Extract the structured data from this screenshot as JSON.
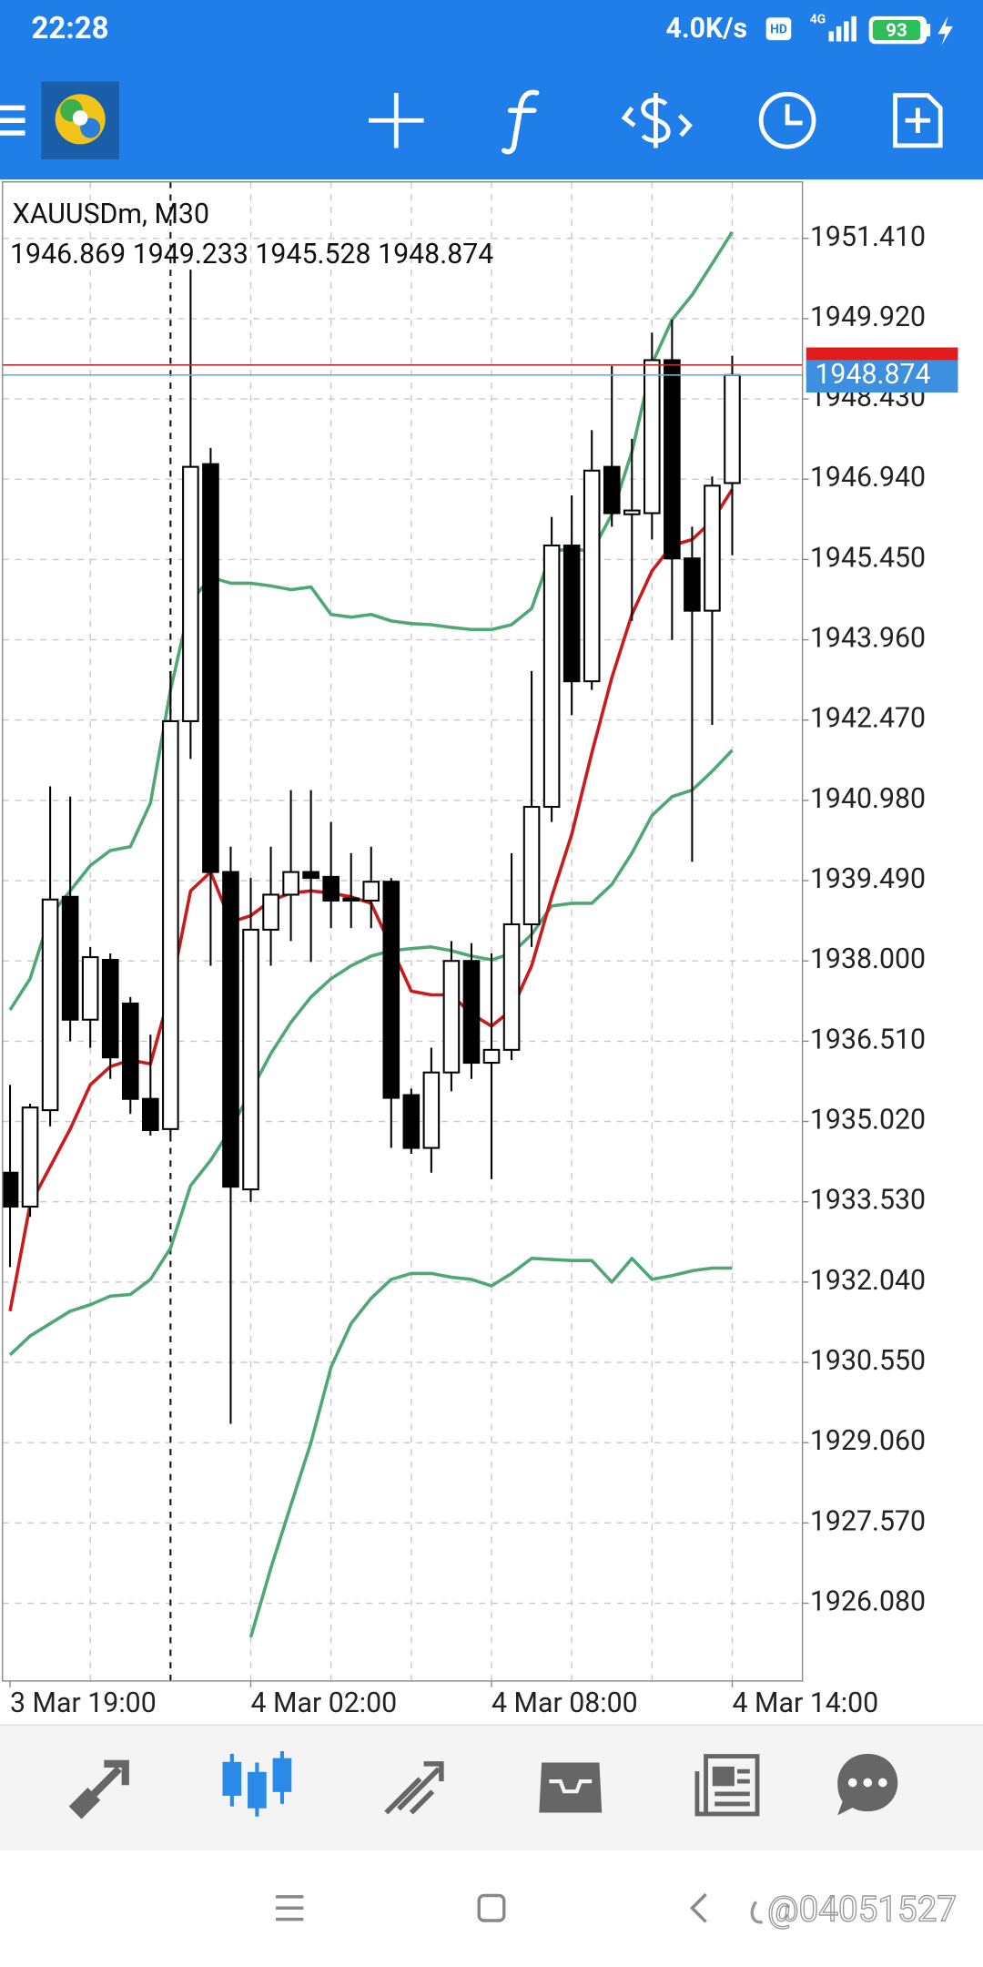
{
  "status_bar": {
    "time": "22:28",
    "network_speed": "4.0K/s",
    "hd": "HD",
    "network": "4G",
    "battery": "93"
  },
  "chart_data": {
    "type": "candlestick",
    "symbol_title": "XAUUSDm, M30",
    "ohlc_label": "1946.869 1949.233 1945.528 1948.874",
    "categories": [
      "3 Mar 19:00",
      null,
      null,
      null,
      null,
      null,
      null,
      null,
      null,
      null,
      null,
      null,
      "4 Mar 02:00",
      null,
      null,
      null,
      null,
      null,
      null,
      null,
      null,
      null,
      null,
      null,
      "4 Mar 08:00",
      null,
      null,
      null,
      null,
      null,
      null,
      null,
      null,
      null,
      null,
      null,
      "4 Mar 14:00"
    ],
    "open": [
      1934.07,
      1933.44,
      1935.23,
      1939.19,
      1936.91,
      1938.02,
      1937.21,
      1935.44,
      1934.88,
      1942.45,
      1947.22,
      1939.65,
      1933.76,
      1938.58,
      1939.23,
      1939.65,
      1939.56,
      1939.16,
      1939.12,
      1939.47,
      1935.51,
      1934.53,
      1935.93,
      1938.0,
      1936.11,
      1936.35,
      1938.68,
      1940.86,
      1945.71,
      1943.19,
      1947.17,
      1946.29,
      1946.31,
      1949.15,
      1945.47,
      1944.5,
      1946.869
    ],
    "high": [
      1935.7,
      1935.35,
      1941.24,
      1941.05,
      1938.26,
      1938.14,
      1937.33,
      1936.63,
      1943.38,
      1950.83,
      1947.52,
      1940.12,
      1939.54,
      1940.12,
      1941.17,
      1941.17,
      1940.58,
      1940.0,
      1940.12,
      1939.54,
      1935.63,
      1936.39,
      1938.37,
      1938.33,
      1938.14,
      1940.0,
      1943.38,
      1946.24,
      1946.64,
      1947.85,
      1949.04,
      1947.69,
      1949.66,
      1949.9,
      1946.06,
      1946.99,
      1949.233
    ],
    "low": [
      1932.32,
      1933.25,
      1934.93,
      1936.51,
      1936.39,
      1935.81,
      1935.16,
      1934.76,
      1934.76,
      1941.75,
      1937.91,
      1929.41,
      1933.53,
      1937.91,
      1938.37,
      1937.98,
      1938.61,
      1938.61,
      1938.61,
      1934.53,
      1934.42,
      1934.07,
      1935.58,
      1935.81,
      1933.95,
      1936.16,
      1938.26,
      1940.58,
      1942.56,
      1943.03,
      1946.06,
      1944.31,
      1945.82,
      1943.96,
      1939.84,
      1942.38,
      1945.528
    ],
    "close": [
      1933.44,
      1935.28,
      1939.14,
      1936.91,
      1938.07,
      1936.21,
      1935.44,
      1934.86,
      1942.45,
      1947.17,
      1939.65,
      1933.81,
      1938.58,
      1939.23,
      1939.65,
      1939.54,
      1939.12,
      1939.12,
      1939.47,
      1935.46,
      1934.53,
      1935.93,
      1938.0,
      1936.11,
      1936.35,
      1938.68,
      1940.86,
      1945.71,
      1943.19,
      1947.1,
      1946.31,
      1946.36,
      1949.15,
      1945.47,
      1944.5,
      1946.82,
      1948.874
    ],
    "up_color": "#ffffff",
    "down_color": "#000000",
    "outline_color": "#000000",
    "series": [
      {
        "color": "#4fa874",
        "values": [
          1937.09,
          1937.67,
          1938.84,
          1939.3,
          1939.77,
          1940.05,
          1940.12,
          1940.93,
          1943.03,
          1944.66,
          1945.12,
          1945.01,
          1945.01,
          1944.96,
          1944.89,
          1944.94,
          1944.43,
          1944.38,
          1944.43,
          1944.31,
          1944.26,
          1944.24,
          1944.19,
          1944.15,
          1944.15,
          1944.24,
          1944.54,
          1945.59,
          1945.66,
          1945.59,
          1946.29,
          1947.45,
          1949.08,
          1949.9,
          1950.36,
          1950.94,
          1951.53
        ]
      },
      {
        "color": "#4fa874",
        "values": [
          1930.69,
          1931.04,
          1931.27,
          1931.5,
          1931.62,
          1931.78,
          1931.81,
          1932.09,
          1932.67,
          1933.83,
          1934.3,
          1934.88,
          1935.58,
          1936.28,
          1936.86,
          1937.33,
          1937.67,
          1937.91,
          1938.09,
          1938.19,
          1938.23,
          1938.26,
          1938.19,
          1938.09,
          1938.02,
          1938.14,
          1938.49,
          1939.02,
          1939.07,
          1939.07,
          1939.42,
          1940.0,
          1940.7,
          1941.05,
          1941.17,
          1941.52,
          1941.91
        ]
      },
      {
        "color": "#4fa874",
        "values": [
          null,
          null,
          null,
          null,
          null,
          null,
          null,
          null,
          null,
          null,
          null,
          null,
          1925.45,
          1926.73,
          1927.9,
          1929.06,
          1930.46,
          1931.27,
          1931.74,
          1932.09,
          1932.2,
          1932.2,
          1932.13,
          1932.09,
          1931.97,
          1932.2,
          1932.48,
          1932.46,
          1932.44,
          1932.44,
          1932.04,
          1932.48,
          1932.09,
          1932.16,
          1932.25,
          1932.3,
          1932.3
        ]
      },
      {
        "color": "#cc1a1a",
        "values": [
          1931.5,
          1933.48,
          1934.18,
          1934.88,
          1935.7,
          1936.04,
          1936.16,
          1936.09,
          1937.44,
          1939.3,
          1939.65,
          1938.72,
          1938.84,
          1939.12,
          1939.26,
          1939.3,
          1939.26,
          1939.19,
          1939.07,
          1938.26,
          1937.44,
          1937.37,
          1937.37,
          1937.02,
          1936.79,
          1937.09,
          1937.91,
          1939.19,
          1940.35,
          1941.86,
          1943.26,
          1944.43,
          1945.24,
          1945.71,
          1945.82,
          1946.17,
          1946.75
        ]
      }
    ],
    "ylim": [
      1924.637,
      1952.458
    ],
    "yticks": [
      {
        "value": 1951.41,
        "label": "1951.410"
      },
      {
        "value": 1949.92,
        "label": "1949.920"
      },
      {
        "value": 1948.43,
        "label": "1948.430"
      },
      {
        "value": 1946.94,
        "label": "1946.940"
      },
      {
        "value": 1945.45,
        "label": "1945.450"
      },
      {
        "value": 1943.96,
        "label": "1943.960"
      },
      {
        "value": 1942.47,
        "label": "1942.470"
      },
      {
        "value": 1940.98,
        "label": "1940.980"
      },
      {
        "value": 1939.49,
        "label": "1939.490"
      },
      {
        "value": 1938,
        "label": "1938.000"
      },
      {
        "value": 1936.51,
        "label": "1936.510"
      },
      {
        "value": 1935.02,
        "label": "1935.020"
      },
      {
        "value": 1933.53,
        "label": "1933.530"
      },
      {
        "value": 1932.04,
        "label": "1932.040"
      },
      {
        "value": 1930.55,
        "label": "1930.550"
      },
      {
        "value": 1929.06,
        "label": "1929.060"
      },
      {
        "value": 1927.57,
        "label": "1927.570"
      },
      {
        "value": 1926.08,
        "label": "1926.080"
      }
    ],
    "grid": true,
    "ask": 1949.06,
    "bid": {
      "value": 1948.874,
      "label": "1948.874"
    }
  },
  "watermark": "@04051527"
}
